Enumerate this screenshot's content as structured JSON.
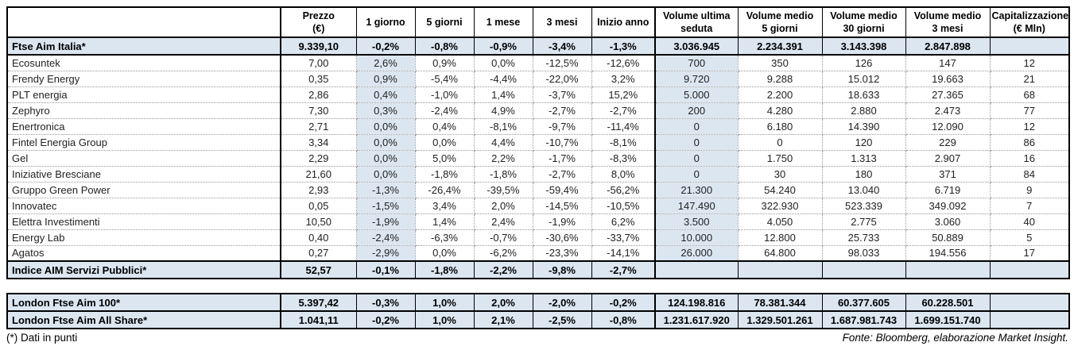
{
  "chart_data": {
    "type": "table",
    "header": [
      {
        "l1": "",
        "l2": ""
      },
      {
        "l1": "Prezzo",
        "l2": "(€)"
      },
      {
        "l1": "1 giorno",
        "l2": ""
      },
      {
        "l1": "5 giorni",
        "l2": ""
      },
      {
        "l1": "1 mese",
        "l2": ""
      },
      {
        "l1": "3 mesi",
        "l2": ""
      },
      {
        "l1": "Inizio anno",
        "l2": ""
      },
      {
        "l1": "Volume ultima",
        "l2": "seduta"
      },
      {
        "l1": "Volume medio",
        "l2": "5 giorni"
      },
      {
        "l1": "Volume medio",
        "l2": "30 giorni"
      },
      {
        "l1": "Volume medio",
        "l2": "3 mesi"
      },
      {
        "l1": "Capitalizzazione",
        "l2": "(€ Mln)"
      }
    ],
    "sections": {
      "main": [
        {
          "name": "Ftse Aim Italia*",
          "style": "index",
          "cells": [
            "9.339,10",
            "-0,2%",
            "-0,8%",
            "-0,9%",
            "-3,4%",
            "-1,3%",
            "3.036.945",
            "2.234.391",
            "3.143.398",
            "2.847.898",
            ""
          ]
        },
        {
          "name": "Ecosuntek",
          "style": "stock",
          "cells": [
            "7,00",
            "2,6%",
            "0,9%",
            "0,0%",
            "-12,5%",
            "-12,6%",
            "700",
            "350",
            "126",
            "147",
            "12"
          ]
        },
        {
          "name": "Frendy Energy",
          "style": "stock",
          "cells": [
            "0,35",
            "0,9%",
            "-5,4%",
            "-4,4%",
            "-22,0%",
            "3,2%",
            "9.720",
            "9.288",
            "15.012",
            "19.663",
            "21"
          ]
        },
        {
          "name": "PLT energia",
          "style": "stock",
          "cells": [
            "2,86",
            "0,4%",
            "-1,0%",
            "1,4%",
            "-3,7%",
            "15,2%",
            "5.000",
            "2.200",
            "18.633",
            "27.365",
            "68"
          ]
        },
        {
          "name": "Zephyro",
          "style": "stock",
          "cells": [
            "7,30",
            "0,3%",
            "-2,4%",
            "4,9%",
            "-2,7%",
            "-2,7%",
            "200",
            "4.280",
            "2.880",
            "2.473",
            "77"
          ]
        },
        {
          "name": "Enertronica",
          "style": "stock",
          "cells": [
            "2,71",
            "0,0%",
            "0,4%",
            "-8,1%",
            "-9,7%",
            "-11,4%",
            "0",
            "6.180",
            "14.390",
            "12.090",
            "12"
          ]
        },
        {
          "name": "Fintel Energia Group",
          "style": "stock",
          "cells": [
            "3,34",
            "0,0%",
            "0,0%",
            "4,4%",
            "-10,7%",
            "-8,1%",
            "0",
            "0",
            "120",
            "229",
            "86"
          ]
        },
        {
          "name": "Gel",
          "style": "stock",
          "cells": [
            "2,29",
            "0,0%",
            "5,0%",
            "2,2%",
            "-1,7%",
            "-8,3%",
            "0",
            "1.750",
            "1.313",
            "2.907",
            "16"
          ]
        },
        {
          "name": "Iniziative Bresciane",
          "style": "stock",
          "cells": [
            "21,60",
            "0,0%",
            "-1,8%",
            "-1,8%",
            "-2,7%",
            "8,0%",
            "0",
            "30",
            "180",
            "371",
            "84"
          ]
        },
        {
          "name": "Gruppo Green Power",
          "style": "stock",
          "cells": [
            "2,93",
            "-1,3%",
            "-26,4%",
            "-39,5%",
            "-59,4%",
            "-56,2%",
            "21.300",
            "54.240",
            "13.040",
            "6.719",
            "9"
          ]
        },
        {
          "name": "Innovatec",
          "style": "stock",
          "cells": [
            "0,05",
            "-1,5%",
            "3,4%",
            "2,0%",
            "-14,5%",
            "-10,5%",
            "147.490",
            "322.930",
            "523.339",
            "349.092",
            "7"
          ]
        },
        {
          "name": "Elettra Investimenti",
          "style": "stock",
          "cells": [
            "10,50",
            "-1,9%",
            "1,4%",
            "2,4%",
            "-1,9%",
            "6,2%",
            "3.500",
            "4.050",
            "2.775",
            "3.060",
            "40"
          ]
        },
        {
          "name": "Energy Lab",
          "style": "stock",
          "cells": [
            "0,40",
            "-2,4%",
            "-6,3%",
            "-0,7%",
            "-30,6%",
            "-33,7%",
            "10.000",
            "12.800",
            "25.733",
            "50.889",
            "5"
          ]
        },
        {
          "name": "Agatos",
          "style": "stock",
          "cells": [
            "0,27",
            "-2,9%",
            "0,0%",
            "-6,2%",
            "-23,3%",
            "-14,1%",
            "26.000",
            "64.800",
            "98.033",
            "194.556",
            "17"
          ]
        },
        {
          "name": "Indice AIM Servizi Pubblici*",
          "style": "index",
          "cells": [
            "52,57",
            "-0,1%",
            "-1,8%",
            "-2,2%",
            "-9,8%",
            "-2,7%",
            "",
            "",
            "",
            "",
            ""
          ]
        }
      ],
      "bottom": [
        {
          "name": "London Ftse Aim 100*",
          "style": "index",
          "cells": [
            "5.397,42",
            "-0,3%",
            "1,0%",
            "2,0%",
            "-2,0%",
            "-0,2%",
            "124.198.816",
            "78.381.344",
            "60.377.605",
            "60.228.501",
            ""
          ]
        },
        {
          "name": "London Ftse Aim All Share*",
          "style": "index",
          "cells": [
            "1.041,11",
            "-0,2%",
            "1,0%",
            "2,1%",
            "-2,5%",
            "-0,8%",
            "1.231.617.920",
            "1.329.501.261",
            "1.687.981.743",
            "1.699.151.740",
            ""
          ]
        }
      ]
    }
  },
  "footer": {
    "note": "(*) Dati in punti",
    "source": "Fonte: Bloomberg, elaborazione Market Insight."
  },
  "colors": {
    "highlight_bg": "#dce6f1",
    "index_row_bg": "#dce6f1",
    "border": "#000000",
    "dotted_grid": "#979797"
  }
}
